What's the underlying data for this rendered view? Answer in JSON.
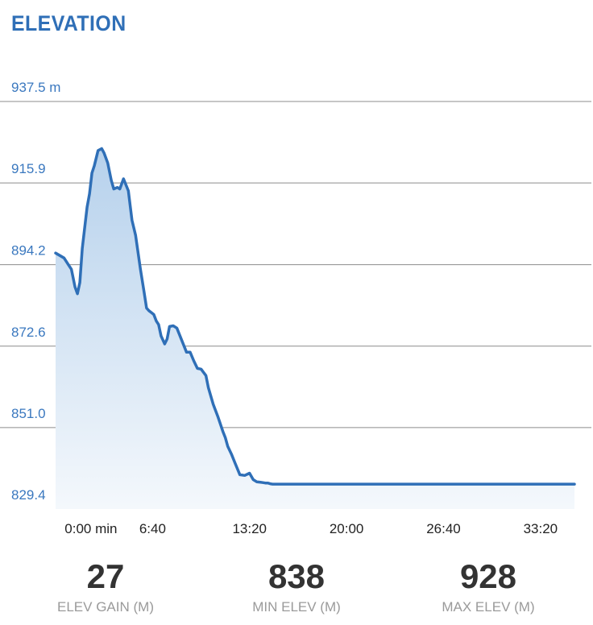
{
  "title": "ELEVATION",
  "chart_data": {
    "type": "area",
    "title": "ELEVATION",
    "y_unit": "m",
    "ylim": [
      829.4,
      937.5
    ],
    "yticks": [
      829.4,
      851.0,
      872.6,
      894.2,
      915.9,
      937.5
    ],
    "ytick_labels": [
      "829.4",
      "851.0",
      "872.6",
      "894.2",
      "915.9",
      "937.5 m"
    ],
    "xlim_seconds": [
      0,
      2140
    ],
    "xticks_seconds": [
      0,
      400,
      800,
      1200,
      1600,
      2000
    ],
    "xtick_labels": [
      "0:00 min",
      "6:40",
      "13:20",
      "20:00",
      "26:40",
      "33:20"
    ],
    "grid": true,
    "series": [
      {
        "x_seconds": [
          0,
          35,
          50,
          65,
          80,
          90,
          100,
          110,
          120,
          130,
          140,
          150,
          160,
          175,
          190,
          200,
          215,
          230,
          240,
          255,
          265,
          280,
          300,
          315,
          330,
          340,
          350,
          365,
          375,
          385,
          395,
          405,
          415,
          425,
          435,
          450,
          460,
          470,
          485,
          500,
          520,
          540,
          555,
          570,
          585,
          600,
          620,
          630,
          650,
          670,
          690,
          700,
          710,
          725,
          740,
          760,
          780,
          800,
          815,
          830,
          845,
          855,
          865,
          875,
          885,
          895,
          905,
          915,
          930,
          950,
          970,
          985,
          1000,
          1025,
          1045,
          1060,
          1075,
          1090,
          1100,
          1110,
          1120,
          1135,
          1150,
          1170,
          1190,
          1210,
          1230,
          1245,
          1260,
          1280,
          1300,
          1320,
          1340,
          1360,
          1380,
          1400,
          1420,
          1440,
          1480,
          1520,
          1560,
          1600,
          1640,
          1680,
          1720,
          1760,
          1800,
          1840,
          1880,
          1920,
          1960,
          2000,
          2030,
          2060,
          2090,
          2120,
          2140
        ],
        "y": [
          897.3,
          896.0,
          894.5,
          893.0,
          888.3,
          886.5,
          889.5,
          898.5,
          904.0,
          909.5,
          913.0,
          918.5,
          920.5,
          924.5,
          925.0,
          923.8,
          921.2,
          916.5,
          914.3,
          914.7,
          914.3,
          917.0,
          913.8,
          906.0,
          902.0,
          897.5,
          893.0,
          887.0,
          882.7,
          882.0,
          881.5,
          881.0,
          879.3,
          878.3,
          875.3,
          873.2,
          874.5,
          877.8,
          878.0,
          877.4,
          874.2,
          871.0,
          871.0,
          868.7,
          866.7,
          866.5,
          864.8,
          861.6,
          857.2,
          853.8,
          850.0,
          848.3,
          846.0,
          844.0,
          841.6,
          838.5,
          838.3,
          838.9,
          837.2,
          836.6,
          836.5,
          836.4,
          836.3,
          836.3,
          836.1,
          836.0,
          836.0,
          836.0,
          836.0,
          836.0,
          836.0,
          836.0,
          836.0,
          836.0,
          836.0,
          836.0,
          836.0,
          836.0,
          836.0,
          836.0,
          836.0,
          836.0,
          836.0,
          836.0,
          836.0,
          836.0,
          836.0,
          836.0,
          836.0,
          836.0,
          836.0,
          836.0,
          836.0,
          836.0,
          836.0,
          836.0,
          836.0,
          836.0,
          836.0,
          836.0,
          836.0,
          836.0,
          836.0,
          836.0,
          836.0,
          836.0,
          836.0,
          836.0,
          836.0,
          836.0,
          836.0,
          836.0,
          836.0,
          836.0,
          836.0,
          836.0,
          836.0
        ]
      }
    ]
  },
  "stats": [
    {
      "value": "27",
      "label": "ELEV GAIN (M)"
    },
    {
      "value": "838",
      "label": "MIN ELEV (M)"
    },
    {
      "value": "928",
      "label": "MAX ELEV (M)"
    }
  ],
  "colors": {
    "accent": "#2f6fb7",
    "line": "#2f6fb7",
    "area_top": "#b6d1ec",
    "area_bottom": "#f4f8fc",
    "grid": "#8c8c8c"
  }
}
